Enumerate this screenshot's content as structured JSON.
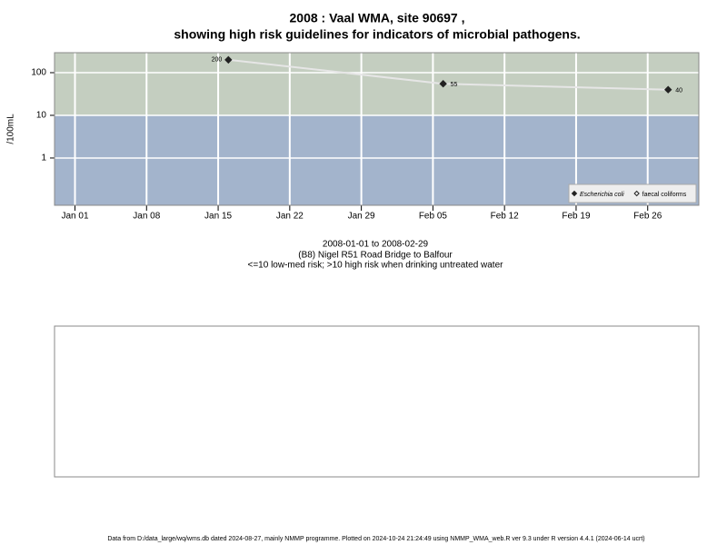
{
  "chart_data": {
    "type": "line",
    "title_lines": [
      "2008 : Vaal WMA, site 90697 ,",
      "showing high risk guidelines for indicators of microbial pathogens."
    ],
    "subtitle_lines": [
      "2008-01-01 to 2008-02-29",
      "(B8) Nigel R51 Road Bridge to Balfour",
      "<=10 low-med risk; >10 high risk when drinking untreated water"
    ],
    "y_label": "/100mL",
    "x": [
      "2008-01-16",
      "2008-02-06",
      "2008-02-28"
    ],
    "series": [
      {
        "name": "Escherichia coli",
        "color": "#222222",
        "line_color": "#e6e6e6",
        "marker": "diamond",
        "values": [
          200,
          55,
          40
        ]
      },
      {
        "name": "faecal coliforms",
        "color": "#222222",
        "marker": "open-diamond",
        "values": [
          null,
          null,
          null
        ]
      }
    ],
    "xlim": [
      "2007-12-30",
      "2008-03-02"
    ],
    "xticks": [
      {
        "value": "2008-01-01",
        "label": "Jan 01"
      },
      {
        "value": "2008-01-08",
        "label": "Jan 08"
      },
      {
        "value": "2008-01-15",
        "label": "Jan 15"
      },
      {
        "value": "2008-01-22",
        "label": "Jan 22"
      },
      {
        "value": "2008-01-29",
        "label": "Jan 29"
      },
      {
        "value": "2008-02-05",
        "label": "Feb 05"
      },
      {
        "value": "2008-02-12",
        "label": "Feb 12"
      },
      {
        "value": "2008-02-19",
        "label": "Feb 19"
      },
      {
        "value": "2008-02-26",
        "label": "Feb 26"
      }
    ],
    "ylim": [
      0.078,
      294
    ],
    "yticks": [
      1,
      10,
      100
    ],
    "log_y": true,
    "grid": true,
    "risk_threshold": 10,
    "high_risk_color": "#c4cec0",
    "low_risk_color": "#a3b4cc",
    "legend_position": "bottom-right"
  },
  "footer": "Data from D:/data_large/wq/wms.db dated 2024-08-27, mainly NMMP programme. Plotted on 2024-10-24 21:24:49 using NMMP_WMA_web.R ver 9.3 under R version 4.4.1 (2024-06-14 ucrt)"
}
